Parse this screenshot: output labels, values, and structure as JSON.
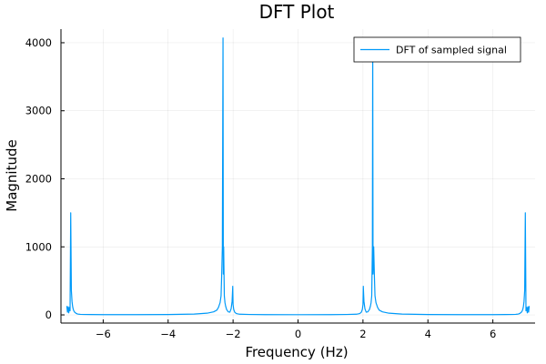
{
  "chart_data": {
    "type": "line",
    "title": "DFT Plot",
    "xlabel": "Frequency (Hz)",
    "ylabel": "Magnitude",
    "xlim": [
      -7.3,
      7.3
    ],
    "ylim": [
      -120,
      4200
    ],
    "x_ticks": [
      -6,
      -4,
      -2,
      0,
      2,
      4,
      6
    ],
    "y_ticks": [
      0,
      1000,
      2000,
      3000,
      4000
    ],
    "x_tick_labels": [
      "−6",
      "−4",
      "−2",
      "0",
      "2",
      "4",
      "6"
    ],
    "y_tick_labels": [
      "0",
      "1000",
      "2000",
      "3000",
      "4000"
    ],
    "grid": true,
    "legend_position": "top-right",
    "series": [
      {
        "name": "DFT of sampled signal",
        "color": "#009af9",
        "x": [
          -7.12,
          -7.1,
          -7.08,
          -7.06,
          -7.04,
          -7.02,
          -7.0,
          -6.98,
          -6.96,
          -6.94,
          -6.92,
          -6.9,
          -6.87,
          -6.84,
          -6.8,
          -6.75,
          -6.7,
          -6.6,
          -6.4,
          -6.0,
          -5.0,
          -4.0,
          -3.2,
          -2.8,
          -2.6,
          -2.5,
          -2.45,
          -2.4,
          -2.37,
          -2.35,
          -2.33,
          -2.31,
          -2.3,
          -2.29,
          -2.27,
          -2.25,
          -2.23,
          -2.2,
          -2.15,
          -2.1,
          -2.06,
          -2.03,
          -2.01,
          -2.0,
          -1.98,
          -1.95,
          -1.9,
          -1.8,
          -1.5,
          -1.0,
          0.0,
          1.0,
          1.5,
          1.8,
          1.9,
          1.95,
          1.98,
          2.0,
          2.01,
          2.03,
          2.06,
          2.1,
          2.15,
          2.2,
          2.23,
          2.25,
          2.27,
          2.29,
          2.3,
          2.31,
          2.33,
          2.35,
          2.37,
          2.4,
          2.45,
          2.5,
          2.6,
          2.8,
          3.2,
          4.0,
          5.0,
          6.0,
          6.4,
          6.6,
          6.7,
          6.75,
          6.8,
          6.84,
          6.87,
          6.9,
          6.92,
          6.94,
          6.96,
          6.98,
          7.0,
          7.02,
          7.04,
          7.06,
          7.08,
          7.1,
          7.12
        ],
        "y": [
          130,
          40,
          120,
          30,
          110,
          60,
          1500,
          360,
          200,
          120,
          80,
          55,
          35,
          25,
          15,
          10,
          8,
          6,
          5,
          4,
          4,
          5,
          12,
          25,
          45,
          70,
          110,
          180,
          280,
          600,
          1000,
          4070,
          600,
          1000,
          280,
          180,
          130,
          80,
          45,
          40,
          90,
          200,
          420,
          150,
          80,
          40,
          20,
          10,
          6,
          4,
          3,
          4,
          6,
          10,
          20,
          40,
          80,
          150,
          420,
          200,
          90,
          40,
          45,
          80,
          130,
          180,
          280,
          1000,
          4070,
          600,
          1000,
          600,
          280,
          180,
          110,
          70,
          45,
          25,
          12,
          5,
          4,
          4,
          5,
          6,
          8,
          10,
          15,
          25,
          35,
          55,
          80,
          120,
          200,
          360,
          1500,
          60,
          110,
          30,
          120,
          40,
          130
        ]
      }
    ]
  }
}
